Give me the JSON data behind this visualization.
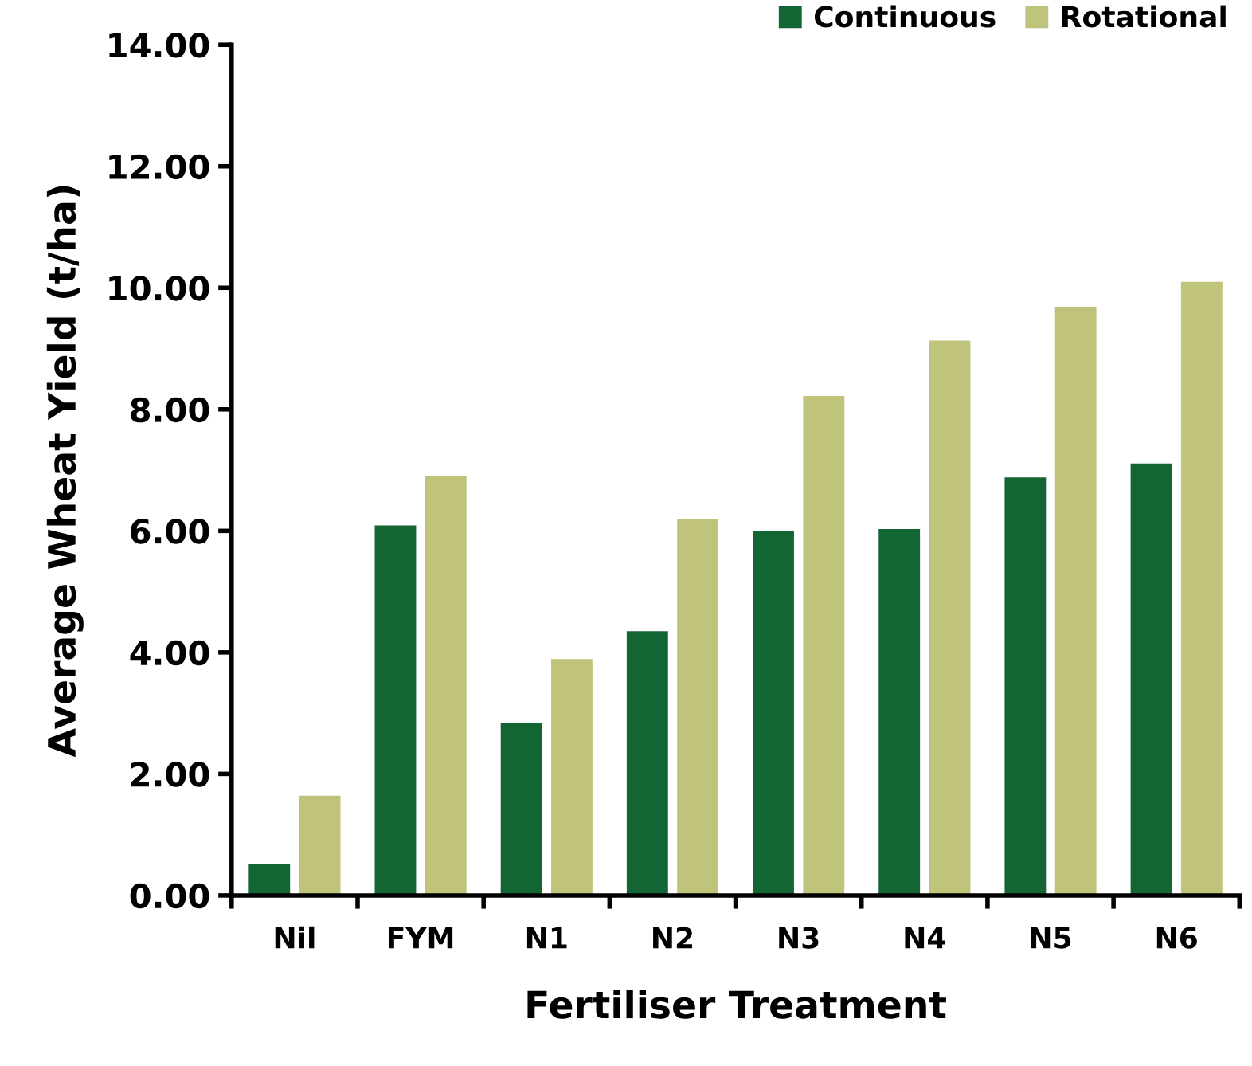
{
  "chart_data": {
    "type": "bar",
    "xlabel": "Fertiliser Treatment",
    "ylabel": "Average Wheat Yield (t/ha)",
    "categories": [
      "Nil",
      "FYM",
      "N1",
      "N2",
      "N3",
      "N4",
      "N5",
      "N6"
    ],
    "series": [
      {
        "name": "Continuous",
        "color": "#136534",
        "values": [
          0.51,
          6.09,
          2.84,
          4.35,
          5.99,
          6.03,
          6.88,
          7.11
        ]
      },
      {
        "name": "Rotational",
        "color": "#bfc47a",
        "values": [
          1.64,
          6.91,
          3.89,
          6.19,
          8.22,
          9.13,
          9.69,
          10.1
        ]
      }
    ],
    "ylim": [
      0,
      14
    ],
    "yticks": [
      {
        "value": 0,
        "label": "0.00"
      },
      {
        "value": 2,
        "label": "2.00"
      },
      {
        "value": 4,
        "label": "4.00"
      },
      {
        "value": 6,
        "label": "6.00"
      },
      {
        "value": 8,
        "label": "8.00"
      },
      {
        "value": 10,
        "label": "10.00"
      },
      {
        "value": 12,
        "label": "12.00"
      },
      {
        "value": 14,
        "label": "14.00"
      }
    ],
    "grid": false,
    "legend": "top right"
  }
}
